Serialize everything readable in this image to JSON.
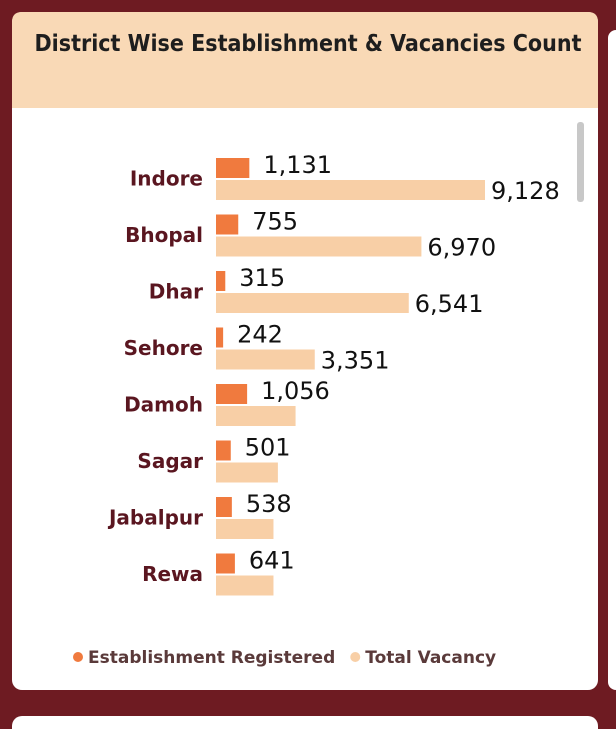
{
  "chart_data": {
    "type": "bar",
    "orientation": "horizontal",
    "title": "District Wise Establishment & Vacancies Count",
    "categories": [
      "Indore",
      "Bhopal",
      "Dhar",
      "Sehore",
      "Damoh",
      "Sagar",
      "Jabalpur",
      "Rewa"
    ],
    "series": [
      {
        "name": "Establishment Registered",
        "color": "#f07a3e",
        "values": [
          1131,
          755,
          315,
          242,
          1056,
          501,
          538,
          641
        ],
        "value_labels": [
          "1,131",
          "755",
          "315",
          "242",
          "1,056",
          "501",
          "538",
          "641"
        ]
      },
      {
        "name": "Total Vacancy",
        "color": "#f8cfa6",
        "values": [
          9128,
          6970,
          6541,
          3351,
          2700,
          2100,
          1950,
          1950
        ],
        "value_labels": [
          "9,128",
          "6,970",
          "6,541",
          "3,351",
          null,
          null,
          null,
          null
        ]
      }
    ],
    "legend": "bottom"
  }
}
